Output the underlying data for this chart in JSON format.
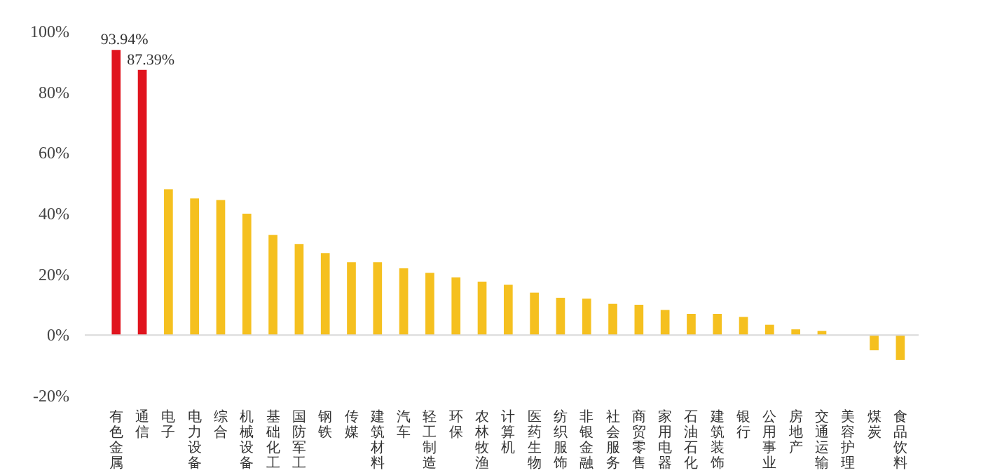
{
  "chart_data": {
    "type": "bar",
    "categories": [
      "有色金属",
      "通信",
      "电子",
      "电力设备",
      "综合",
      "机械设备",
      "基础化工",
      "国防军工",
      "钢铁",
      "传媒",
      "建筑材料",
      "汽车",
      "轻工制造",
      "环保",
      "农林牧渔",
      "计算机",
      "医药生物",
      "纺织服饰",
      "非银金融",
      "社会服务",
      "商贸零售",
      "家用电器",
      "石油石化",
      "建筑装饰",
      "银行",
      "公用事业",
      "房地产",
      "交通运输",
      "美容护理",
      "煤炭",
      "食品饮料"
    ],
    "values": [
      93.94,
      87.39,
      48,
      45,
      44.5,
      40,
      33,
      30,
      27,
      24,
      24,
      22,
      20.5,
      19,
      17.6,
      16.6,
      14,
      12.3,
      12,
      10.3,
      10,
      8.3,
      7,
      7,
      6,
      3.4,
      1.9,
      1.4,
      0,
      -5,
      -8.2
    ],
    "colors": [
      "#e0141e",
      "#e0141e",
      "#f5c01f",
      "#f5c01f",
      "#f5c01f",
      "#f5c01f",
      "#f5c01f",
      "#f5c01f",
      "#f5c01f",
      "#f5c01f",
      "#f5c01f",
      "#f5c01f",
      "#f5c01f",
      "#f5c01f",
      "#f5c01f",
      "#f5c01f",
      "#f5c01f",
      "#f5c01f",
      "#f5c01f",
      "#f5c01f",
      "#f5c01f",
      "#f5c01f",
      "#f5c01f",
      "#f5c01f",
      "#f5c01f",
      "#f5c01f",
      "#f5c01f",
      "#f5c01f",
      "#f5c01f",
      "#f5c01f",
      "#f5c01f"
    ],
    "value_labels": [
      "93.94%",
      "87.39%",
      null,
      null,
      null,
      null,
      null,
      null,
      null,
      null,
      null,
      null,
      null,
      null,
      null,
      null,
      null,
      null,
      null,
      null,
      null,
      null,
      null,
      null,
      null,
      null,
      null,
      null,
      null,
      null,
      null
    ],
    "ylim": [
      -20,
      100
    ],
    "yticks": [
      {
        "value": -20,
        "label": "-20%"
      },
      {
        "value": 0,
        "label": "0%"
      },
      {
        "value": 20,
        "label": "20%"
      },
      {
        "value": 40,
        "label": "40%"
      },
      {
        "value": 60,
        "label": "60%"
      },
      {
        "value": 80,
        "label": "80%"
      },
      {
        "value": 100,
        "label": "100%"
      }
    ]
  }
}
